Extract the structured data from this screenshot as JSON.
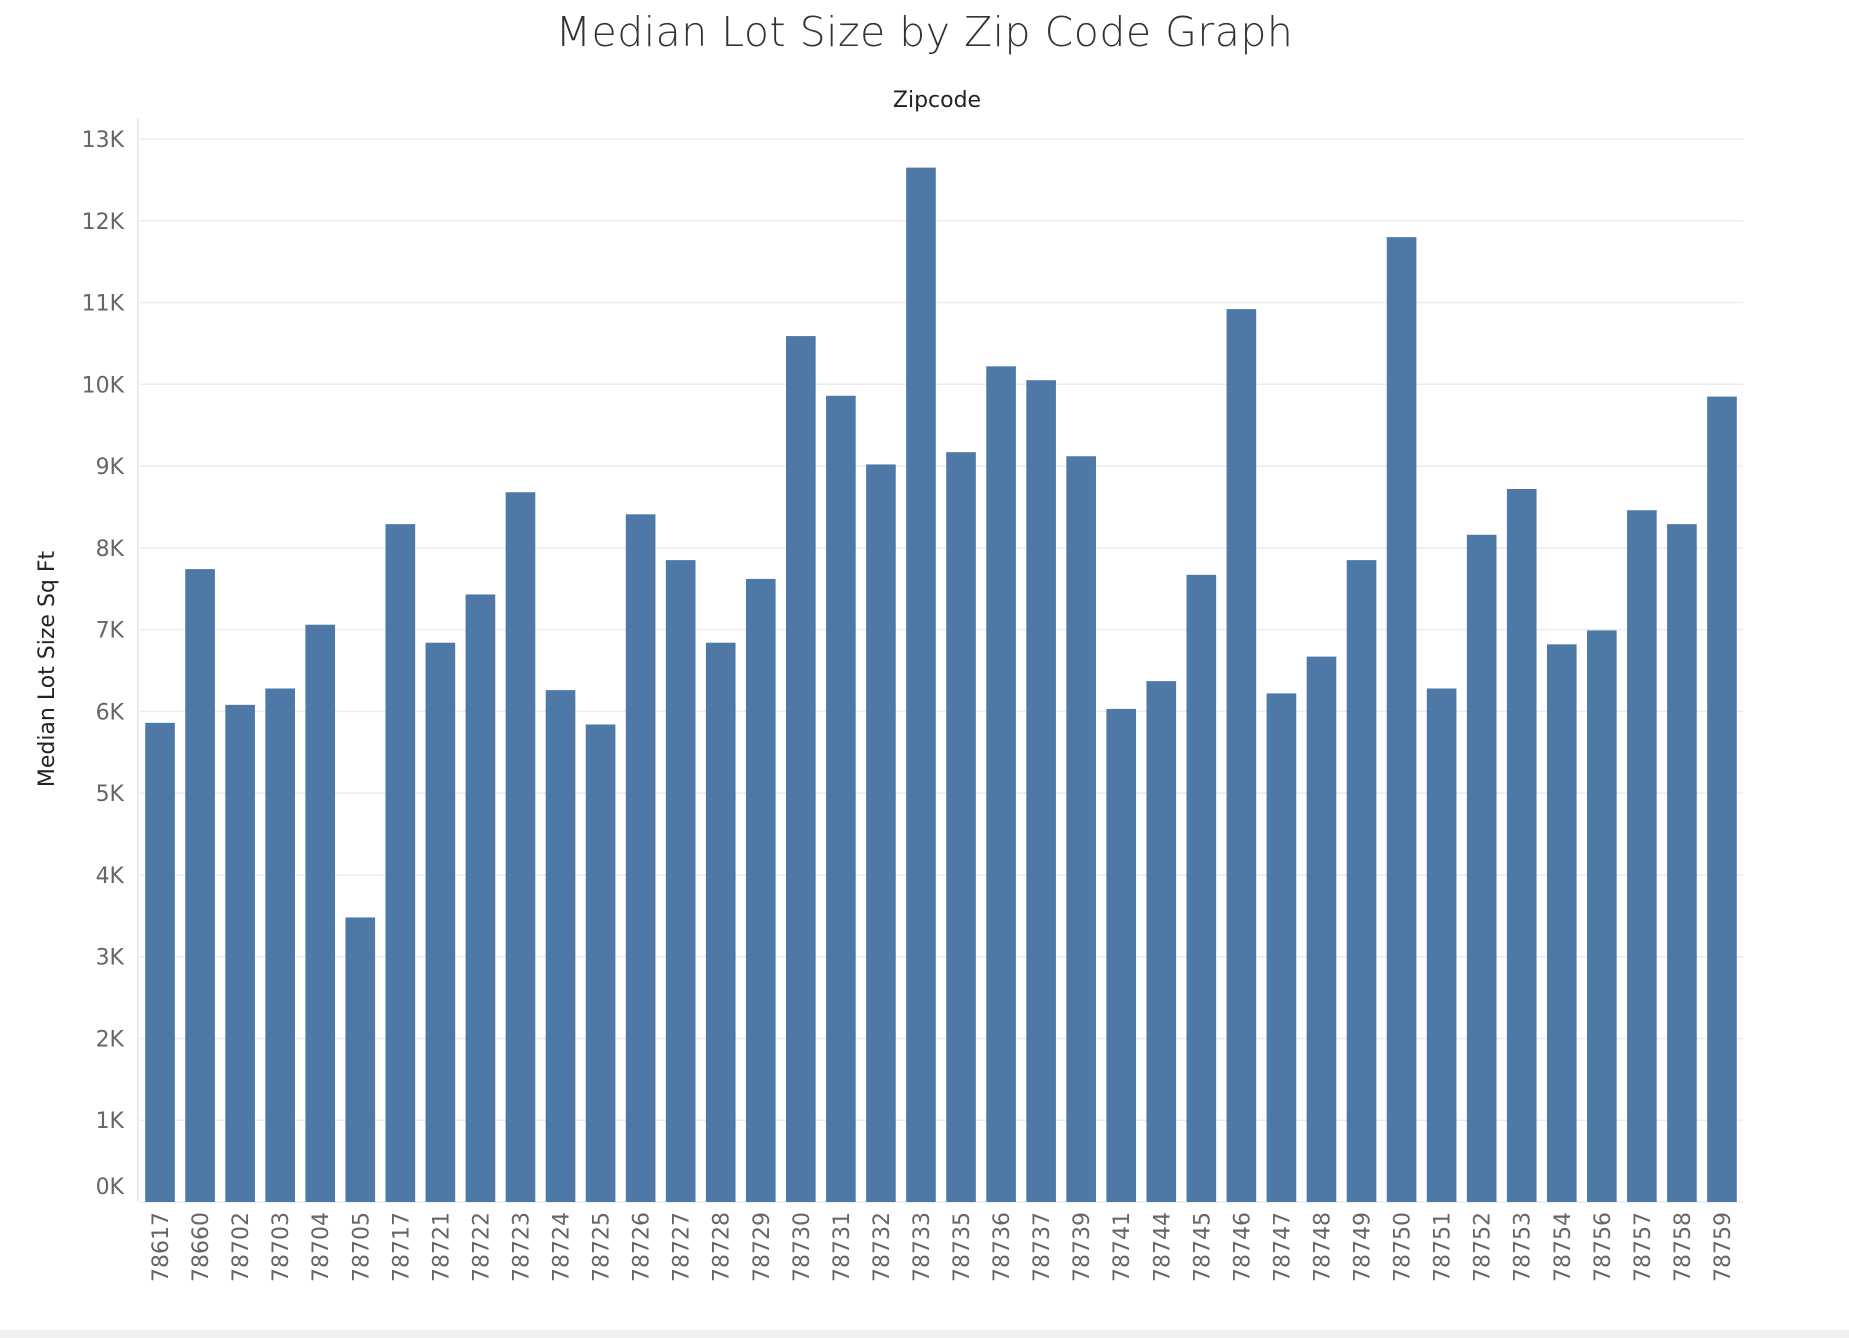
{
  "chart_data": {
    "type": "bar",
    "title": "Median Lot Size by Zip Code Graph",
    "xlabel": "Zipcode",
    "ylabel": "Median Lot Size Sq Ft",
    "ylim": [
      0,
      13000
    ],
    "yticks": [
      "0K",
      "1K",
      "2K",
      "3K",
      "4K",
      "5K",
      "6K",
      "7K",
      "8K",
      "9K",
      "10K",
      "11K",
      "12K",
      "13K"
    ],
    "grid": true,
    "bar_color": "#4e79a7",
    "categories": [
      "78617",
      "78660",
      "78702",
      "78703",
      "78704",
      "78705",
      "78717",
      "78721",
      "78722",
      "78723",
      "78724",
      "78725",
      "78726",
      "78727",
      "78728",
      "78729",
      "78730",
      "78731",
      "78732",
      "78733",
      "78735",
      "78736",
      "78737",
      "78739",
      "78741",
      "78744",
      "78745",
      "78746",
      "78747",
      "78748",
      "78749",
      "78750",
      "78751",
      "78752",
      "78753",
      "78754",
      "78756",
      "78757",
      "78758",
      "78759"
    ],
    "values": [
      5860,
      7740,
      6080,
      6280,
      7060,
      3480,
      8290,
      6840,
      7430,
      8680,
      6260,
      5840,
      8410,
      7850,
      6840,
      7620,
      10590,
      9860,
      9020,
      12650,
      9170,
      10220,
      10050,
      9120,
      6030,
      6370,
      7670,
      10920,
      6220,
      6670,
      7850,
      11800,
      6280,
      8160,
      8720,
      6820,
      6990,
      8460,
      8290,
      9850
    ]
  }
}
